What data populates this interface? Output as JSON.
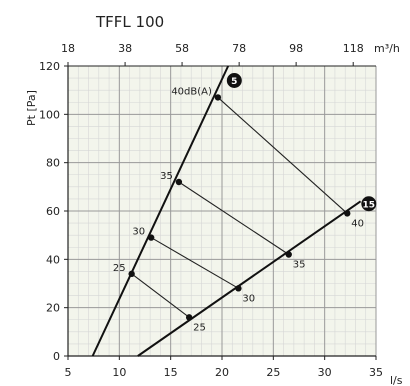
{
  "chart_data": {
    "type": "line",
    "title": "TFFL 100",
    "xlabel": "l/s",
    "ylabel": "Pt [Pa]",
    "x2label": "m³/h",
    "xlim": [
      5,
      35
    ],
    "ylim": [
      0,
      120
    ],
    "x_ticks": [
      "5",
      "10",
      "15",
      "20",
      "25",
      "30",
      "35"
    ],
    "y_ticks": [
      "0",
      "20",
      "40",
      "60",
      "80",
      "100",
      "120"
    ],
    "x2_ticks": [
      "18",
      "38",
      "58",
      "78",
      "98",
      "118"
    ],
    "x2_tick_values_ls": [
      5,
      10.56,
      16.11,
      21.67,
      27.22,
      32.78
    ],
    "grid": true,
    "colors": {
      "line": "#111111",
      "grid": "#999999",
      "marker": "#111111"
    },
    "series": [
      {
        "name": "5",
        "x": [
          7.4,
          20.6
        ],
        "y": [
          0,
          120
        ]
      },
      {
        "name": "15",
        "x": [
          11.8,
          33.5
        ],
        "y": [
          0,
          64
        ]
      }
    ],
    "sound_lines": [
      {
        "label": "25",
        "points": [
          [
            11.2,
            34
          ],
          [
            16.8,
            16
          ]
        ]
      },
      {
        "label": "30",
        "points": [
          [
            13.1,
            49
          ],
          [
            21.6,
            28
          ]
        ]
      },
      {
        "label": "35",
        "points": [
          [
            15.8,
            72
          ],
          [
            26.5,
            42
          ]
        ]
      },
      {
        "label": "40dB(A)",
        "end_label": "40",
        "points": [
          [
            19.6,
            107
          ],
          [
            32.2,
            59
          ]
        ]
      }
    ]
  }
}
